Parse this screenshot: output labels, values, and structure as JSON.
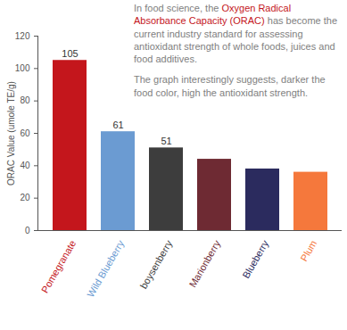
{
  "chart_data": {
    "type": "bar",
    "annotations": [
      [
        {
          "text": "In food science, the ",
          "color": "#808080"
        },
        {
          "text": "Oxygen Radical Absorbance Capacity (ORAC)",
          "color": "#c4161c"
        },
        {
          "text": " has become the current industry standard for assessing antioxidant strength of whole foods, juices and food additives.",
          "color": "#808080"
        }
      ],
      [
        {
          "text": "The graph interestingly suggests, darker the food color, high the antioxidant strength.",
          "color": "#808080"
        }
      ]
    ],
    "y_label": "ORAC Value (umole TE/g)",
    "categories": [
      "Pomegranate",
      "Wild Blueberry",
      "boysenberry",
      "Marionberry",
      "Blueberry",
      "Plum"
    ],
    "values": [
      105,
      61,
      51,
      44,
      38,
      36
    ],
    "value_labels": [
      "105",
      "61",
      "51",
      null,
      null,
      null
    ],
    "colors": [
      "#c4161c",
      "#6b9bd2",
      "#3d3d3d",
      "#6e2a33",
      "#2b2b5e",
      "#f5783c"
    ],
    "data_labels": true,
    "ylim": [
      0,
      120
    ],
    "yticks": [
      0,
      20,
      40,
      60,
      80,
      100,
      120
    ],
    "grid": false
  }
}
